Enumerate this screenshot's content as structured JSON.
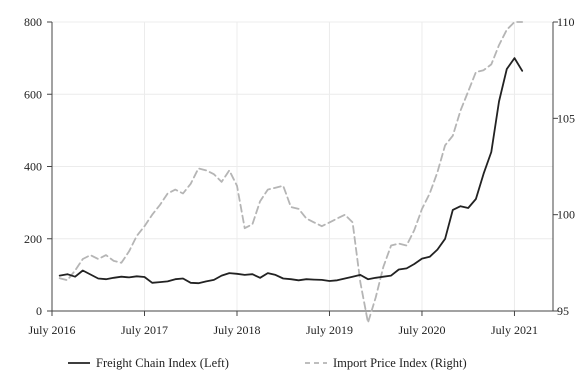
{
  "chart_data": {
    "type": "line",
    "title": "",
    "xlabel": "",
    "ylabel": "",
    "x_ticks": [
      "July 2016",
      "July 2017",
      "July 2018",
      "July 2019",
      "July 2020",
      "July 2021"
    ],
    "y_left": {
      "lim": [
        0,
        800
      ],
      "ticks": [
        "0",
        "200",
        "400",
        "600",
        "800"
      ]
    },
    "y_right": {
      "lim": [
        95,
        110
      ],
      "ticks": [
        "95",
        "100",
        "105",
        "110"
      ]
    },
    "grid": true,
    "legend_position": "bottom",
    "series": [
      {
        "name": "Freight Chain Index (Left)",
        "axis": "left",
        "color": "#222222",
        "style": "solid",
        "x": [
          "2016-08",
          "2016-09",
          "2016-10",
          "2016-11",
          "2016-12",
          "2017-01",
          "2017-02",
          "2017-03",
          "2017-04",
          "2017-05",
          "2017-06",
          "2017-07",
          "2017-08",
          "2017-09",
          "2017-10",
          "2017-11",
          "2017-12",
          "2018-01",
          "2018-02",
          "2018-03",
          "2018-04",
          "2018-05",
          "2018-06",
          "2018-07",
          "2018-08",
          "2018-09",
          "2018-10",
          "2018-11",
          "2018-12",
          "2019-01",
          "2019-02",
          "2019-03",
          "2019-04",
          "2019-05",
          "2019-06",
          "2019-07",
          "2019-08",
          "2019-09",
          "2019-10",
          "2019-11",
          "2019-12",
          "2020-01",
          "2020-02",
          "2020-03",
          "2020-04",
          "2020-05",
          "2020-06",
          "2020-07",
          "2020-08",
          "2020-09",
          "2020-10",
          "2020-11",
          "2020-12",
          "2021-01",
          "2021-02",
          "2021-03",
          "2021-04",
          "2021-05",
          "2021-06",
          "2021-07",
          "2021-08"
        ],
        "values": [
          98,
          102,
          95,
          112,
          101,
          90,
          88,
          92,
          95,
          93,
          96,
          94,
          78,
          80,
          82,
          88,
          90,
          78,
          77,
          82,
          86,
          98,
          105,
          103,
          100,
          102,
          92,
          105,
          100,
          90,
          88,
          85,
          88,
          87,
          86,
          83,
          85,
          90,
          95,
          100,
          88,
          92,
          95,
          98,
          115,
          118,
          130,
          145,
          150,
          170,
          200,
          280,
          290,
          285,
          310,
          380,
          440,
          580,
          670,
          700,
          665
        ]
      },
      {
        "name": "Import Price Index (Right)",
        "axis": "right",
        "color": "#b5b5b5",
        "style": "dashed",
        "x": [
          "2016-08",
          "2016-09",
          "2016-10",
          "2016-11",
          "2016-12",
          "2017-01",
          "2017-02",
          "2017-03",
          "2017-04",
          "2017-05",
          "2017-06",
          "2017-07",
          "2017-08",
          "2017-09",
          "2017-10",
          "2017-11",
          "2017-12",
          "2018-01",
          "2018-02",
          "2018-03",
          "2018-04",
          "2018-05",
          "2018-06",
          "2018-07",
          "2018-08",
          "2018-09",
          "2018-10",
          "2018-11",
          "2018-12",
          "2019-01",
          "2019-02",
          "2019-03",
          "2019-04",
          "2019-05",
          "2019-06",
          "2019-07",
          "2019-08",
          "2019-09",
          "2019-10",
          "2019-11",
          "2019-12",
          "2020-01",
          "2020-02",
          "2020-03",
          "2020-04",
          "2020-05",
          "2020-06",
          "2020-07",
          "2020-08",
          "2020-09",
          "2020-10",
          "2020-11",
          "2020-12",
          "2021-01",
          "2021-02",
          "2021-03",
          "2021-04",
          "2021-05",
          "2021-06",
          "2021-07",
          "2021-08"
        ],
        "values": [
          96.7,
          96.6,
          97.1,
          97.7,
          97.9,
          97.7,
          97.9,
          97.6,
          97.5,
          98.1,
          98.9,
          99.4,
          100.0,
          100.5,
          101.1,
          101.3,
          101.1,
          101.6,
          102.4,
          102.3,
          102.1,
          101.7,
          102.3,
          101.5,
          99.3,
          99.5,
          100.7,
          101.3,
          101.4,
          101.5,
          100.4,
          100.3,
          99.8,
          99.6,
          99.4,
          99.6,
          99.8,
          100.0,
          99.6,
          96.5,
          94.4,
          95.7,
          97.3,
          98.4,
          98.5,
          98.4,
          99.2,
          100.3,
          101.1,
          102.2,
          103.6,
          104.1,
          105.4,
          106.4,
          107.4,
          107.5,
          107.8,
          108.8,
          109.6,
          110.0,
          110.0
        ]
      }
    ]
  }
}
